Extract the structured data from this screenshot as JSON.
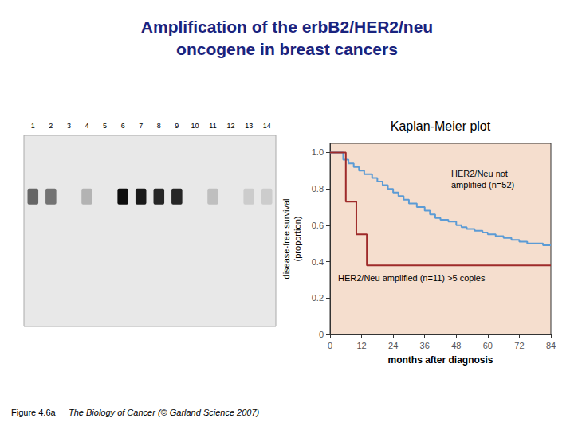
{
  "title": "Amplification of the erbB2/HER2/neu\noncogene in breast cancers",
  "title_color": "#1a237e",
  "caption": [
    "Figure 4.6a",
    "The Biology of Cancer (© Garland Science 2007)"
  ],
  "chart_data": [
    {
      "type": "step",
      "title": "Kaplan-Meier plot",
      "xlabel": "months after diagnosis",
      "ylabel": "disease-free survival\n(proportion)",
      "color": "#f5dece",
      "xlim": [
        0,
        84
      ],
      "xticks": [
        0,
        12,
        24,
        36,
        48,
        60,
        72,
        84
      ],
      "ylim": [
        0,
        1.05
      ],
      "yticks": [
        0,
        0.2,
        0.4,
        0.6,
        0.8,
        {
          "value": 1.0,
          "label": "1.0"
        }
      ],
      "grid": false,
      "series": [
        {
          "color": "#5b9bd5",
          "x": [
            0,
            3,
            5,
            7,
            9,
            11,
            13,
            16,
            18,
            20,
            22,
            24,
            26,
            28,
            30,
            33,
            36,
            38,
            40,
            42,
            45,
            48,
            50,
            52,
            55,
            58,
            60,
            63,
            66,
            69,
            72,
            75,
            78,
            81,
            84
          ],
          "values": [
            1.0,
            1.0,
            0.96,
            0.94,
            0.92,
            0.9,
            0.88,
            0.86,
            0.84,
            0.82,
            0.8,
            0.78,
            0.76,
            0.74,
            0.72,
            0.7,
            0.68,
            0.66,
            0.64,
            0.63,
            0.62,
            0.6,
            0.59,
            0.58,
            0.57,
            0.56,
            0.55,
            0.54,
            0.53,
            0.52,
            0.51,
            0.5,
            0.5,
            0.49,
            0.49
          ]
        },
        {
          "color": "#9e2a2a",
          "x": [
            0,
            6,
            10,
            14,
            84
          ],
          "values": [
            1.0,
            0.73,
            0.55,
            0.38,
            0.38
          ]
        }
      ],
      "annotations": [
        "HER2/Neu not\namplified (n=52)",
        "HER2/Neu amplified (n=11) >5 copies"
      ]
    },
    {
      "type": "gel",
      "color": "#e8e8e8",
      "categories": [
        "1",
        "2",
        "3",
        "4",
        "5",
        "6",
        "7",
        "8",
        "9",
        "10",
        "11",
        "12",
        "13",
        "14"
      ],
      "values": [
        0.6,
        0.55,
        0.0,
        0.3,
        0.0,
        0.95,
        0.9,
        0.85,
        0.85,
        0.0,
        0.25,
        0.0,
        0.2,
        0.2
      ],
      "tick_labels": "x"
    }
  ]
}
